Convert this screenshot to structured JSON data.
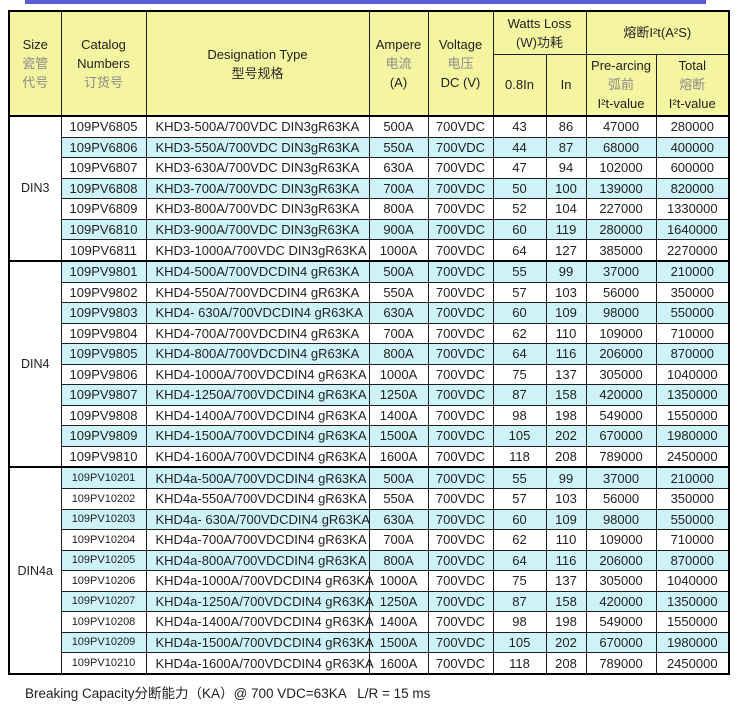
{
  "colors": {
    "accent_line": "#5a5ad6",
    "header_bg": "#f4f4a1",
    "stripe_bg": "#cdf3f8",
    "border": "#000000"
  },
  "header": {
    "size_en": "Size",
    "size_cn1": "瓷管",
    "size_cn2": "代号",
    "catalog_en1": "Catalog",
    "catalog_en2": "Numbers",
    "catalog_cn": "订货号",
    "designation_en": "Designation Type",
    "designation_cn": "型号规格",
    "ampere_en": "Ampere",
    "ampere_cn": "电流",
    "ampere_unit": "(A)",
    "voltage_en": "Voltage",
    "voltage_cn": "电压",
    "voltage_unit": "DC (V)",
    "watts_en": "Watts Loss",
    "watts_cn": "(W)功耗",
    "watts_sub_08": "0.8In",
    "watts_sub_in": "In",
    "i2t_title": "熔断I²t(A²S)",
    "prearcing_en": "Pre-arcing",
    "prearcing_cn": "弧前",
    "prearcing_val": "I²t-value",
    "total_en": "Total",
    "total_cn": "熔断",
    "total_val": "I²t-value"
  },
  "sections": [
    {
      "size": "DIN3",
      "rows": [
        {
          "catalog": "109PV6805",
          "designation": "KHD3-500A/700VDC DIN3gR63KA",
          "ampere": "500A",
          "voltage": "700VDC",
          "watts_08in": "43",
          "watts_in": "86",
          "prearcing_i2t": "47000",
          "total_i2t": "280000"
        },
        {
          "catalog": "109PV6806",
          "designation": "KHD3-550A/700VDC DIN3gR63KA",
          "ampere": "550A",
          "voltage": "700VDC",
          "watts_08in": "44",
          "watts_in": "87",
          "prearcing_i2t": "68000",
          "total_i2t": "400000"
        },
        {
          "catalog": "109PV6807",
          "designation": "KHD3-630A/700VDC DIN3gR63KA",
          "ampere": "630A",
          "voltage": "700VDC",
          "watts_08in": "47",
          "watts_in": "94",
          "prearcing_i2t": "102000",
          "total_i2t": "600000"
        },
        {
          "catalog": "109PV6808",
          "designation": "KHD3-700A/700VDC DIN3gR63KA",
          "ampere": "700A",
          "voltage": "700VDC",
          "watts_08in": "50",
          "watts_in": "100",
          "prearcing_i2t": "139000",
          "total_i2t": "820000"
        },
        {
          "catalog": "109PV6809",
          "designation": "KHD3-800A/700VDC DIN3gR63KA",
          "ampere": "800A",
          "voltage": "700VDC",
          "watts_08in": "52",
          "watts_in": "104",
          "prearcing_i2t": "227000",
          "total_i2t": "1330000"
        },
        {
          "catalog": "109PV6810",
          "designation": "KHD3-900A/700VDC DIN3gR63KA",
          "ampere": "900A",
          "voltage": "700VDC",
          "watts_08in": "60",
          "watts_in": "119",
          "prearcing_i2t": "280000",
          "total_i2t": "1640000"
        },
        {
          "catalog": "109PV6811",
          "designation": "KHD3-1000A/700VDC DIN3gR63KA",
          "ampere": "1000A",
          "voltage": "700VDC",
          "watts_08in": "64",
          "watts_in": "127",
          "prearcing_i2t": "385000",
          "total_i2t": "2270000"
        }
      ]
    },
    {
      "size": "DIN4",
      "rows": [
        {
          "catalog": "109PV9801",
          "designation": "KHD4-500A/700VDCDIN4 gR63KA",
          "ampere": "500A",
          "voltage": "700VDC",
          "watts_08in": "55",
          "watts_in": "99",
          "prearcing_i2t": "37000",
          "total_i2t": "210000"
        },
        {
          "catalog": "109PV9802",
          "designation": "KHD4-550A/700VDCDIN4 gR63KA",
          "ampere": "550A",
          "voltage": "700VDC",
          "watts_08in": "57",
          "watts_in": "103",
          "prearcing_i2t": "56000",
          "total_i2t": "350000"
        },
        {
          "catalog": "109PV9803",
          "designation": "KHD4- 630A/700VDCDIN4 gR63KA",
          "ampere": "630A",
          "voltage": "700VDC",
          "watts_08in": "60",
          "watts_in": "109",
          "prearcing_i2t": "98000",
          "total_i2t": "550000"
        },
        {
          "catalog": "109PV9804",
          "designation": "KHD4-700A/700VDCDIN4 gR63KA",
          "ampere": "700A",
          "voltage": "700VDC",
          "watts_08in": "62",
          "watts_in": "110",
          "prearcing_i2t": "109000",
          "total_i2t": "710000"
        },
        {
          "catalog": "109PV9805",
          "designation": "KHD4-800A/700VDCDIN4 gR63KA",
          "ampere": "800A",
          "voltage": "700VDC",
          "watts_08in": "64",
          "watts_in": "116",
          "prearcing_i2t": "206000",
          "total_i2t": "870000"
        },
        {
          "catalog": "109PV9806",
          "designation": "KHD4-1000A/700VDCDIN4 gR63KA",
          "ampere": "1000A",
          "voltage": "700VDC",
          "watts_08in": "75",
          "watts_in": "137",
          "prearcing_i2t": "305000",
          "total_i2t": "1040000"
        },
        {
          "catalog": "109PV9807",
          "designation": "KHD4-1250A/700VDCDIN4 gR63KA",
          "ampere": "1250A",
          "voltage": "700VDC",
          "watts_08in": "87",
          "watts_in": "158",
          "prearcing_i2t": "420000",
          "total_i2t": "1350000"
        },
        {
          "catalog": "109PV9808",
          "designation": "KHD4-1400A/700VDCDIN4 gR63KA",
          "ampere": "1400A",
          "voltage": "700VDC",
          "watts_08in": "98",
          "watts_in": "198",
          "prearcing_i2t": "549000",
          "total_i2t": "1550000"
        },
        {
          "catalog": "109PV9809",
          "designation": "KHD4-1500A/700VDCDIN4 gR63KA",
          "ampere": "1500A",
          "voltage": "700VDC",
          "watts_08in": "105",
          "watts_in": "202",
          "prearcing_i2t": "670000",
          "total_i2t": "1980000"
        },
        {
          "catalog": "109PV9810",
          "designation": "KHD4-1600A/700VDCDIN4 gR63KA",
          "ampere": "1600A",
          "voltage": "700VDC",
          "watts_08in": "118",
          "watts_in": "208",
          "prearcing_i2t": "789000",
          "total_i2t": "2450000"
        }
      ]
    },
    {
      "size": "DIN4a",
      "rows": [
        {
          "catalog": "109PV10201",
          "designation": "KHD4a-500A/700VDCDIN4 gR63KA",
          "ampere": "500A",
          "voltage": "700VDC",
          "watts_08in": "55",
          "watts_in": "99",
          "prearcing_i2t": "37000",
          "total_i2t": "210000"
        },
        {
          "catalog": "109PV10202",
          "designation": "KHD4a-550A/700VDCDIN4 gR63KA",
          "ampere": "550A",
          "voltage": "700VDC",
          "watts_08in": "57",
          "watts_in": "103",
          "prearcing_i2t": "56000",
          "total_i2t": "350000"
        },
        {
          "catalog": "109PV10203",
          "designation": "KHD4a- 630A/700VDCDIN4 gR63KA",
          "ampere": "630A",
          "voltage": "700VDC",
          "watts_08in": "60",
          "watts_in": "109",
          "prearcing_i2t": "98000",
          "total_i2t": "550000"
        },
        {
          "catalog": "109PV10204",
          "designation": "KHD4a-700A/700VDCDIN4 gR63KA",
          "ampere": "700A",
          "voltage": "700VDC",
          "watts_08in": "62",
          "watts_in": "110",
          "prearcing_i2t": "109000",
          "total_i2t": "710000"
        },
        {
          "catalog": "109PV10205",
          "designation": "KHD4a-800A/700VDCDIN4 gR63KA",
          "ampere": "800A",
          "voltage": "700VDC",
          "watts_08in": "64",
          "watts_in": "116",
          "prearcing_i2t": "206000",
          "total_i2t": "870000"
        },
        {
          "catalog": "109PV10206",
          "designation": "KHD4a-1000A/700VDCDIN4 gR63KA",
          "ampere": "1000A",
          "voltage": "700VDC",
          "watts_08in": "75",
          "watts_in": "137",
          "prearcing_i2t": "305000",
          "total_i2t": "1040000"
        },
        {
          "catalog": "109PV10207",
          "designation": "KHD4a-1250A/700VDCDIN4 gR63KA",
          "ampere": "1250A",
          "voltage": "700VDC",
          "watts_08in": "87",
          "watts_in": "158",
          "prearcing_i2t": "420000",
          "total_i2t": "1350000"
        },
        {
          "catalog": "109PV10208",
          "designation": "KHD4a-1400A/700VDCDIN4 gR63KA",
          "ampere": "1400A",
          "voltage": "700VDC",
          "watts_08in": "98",
          "watts_in": "198",
          "prearcing_i2t": "549000",
          "total_i2t": "1550000"
        },
        {
          "catalog": "109PV10209",
          "designation": "KHD4a-1500A/700VDCDIN4 gR63KA",
          "ampere": "1500A",
          "voltage": "700VDC",
          "watts_08in": "105",
          "watts_in": "202",
          "prearcing_i2t": "670000",
          "total_i2t": "1980000"
        },
        {
          "catalog": "109PV10210",
          "designation": "KHD4a-1600A/700VDCDIN4 gR63KA",
          "ampere": "1600A",
          "voltage": "700VDC",
          "watts_08in": "118",
          "watts_in": "208",
          "prearcing_i2t": "789000",
          "total_i2t": "2450000"
        }
      ]
    }
  ],
  "footer": {
    "text": "Breaking Capacity分断能力（KA）@ 700 VDC=63KA   L/R = 15 ms"
  }
}
